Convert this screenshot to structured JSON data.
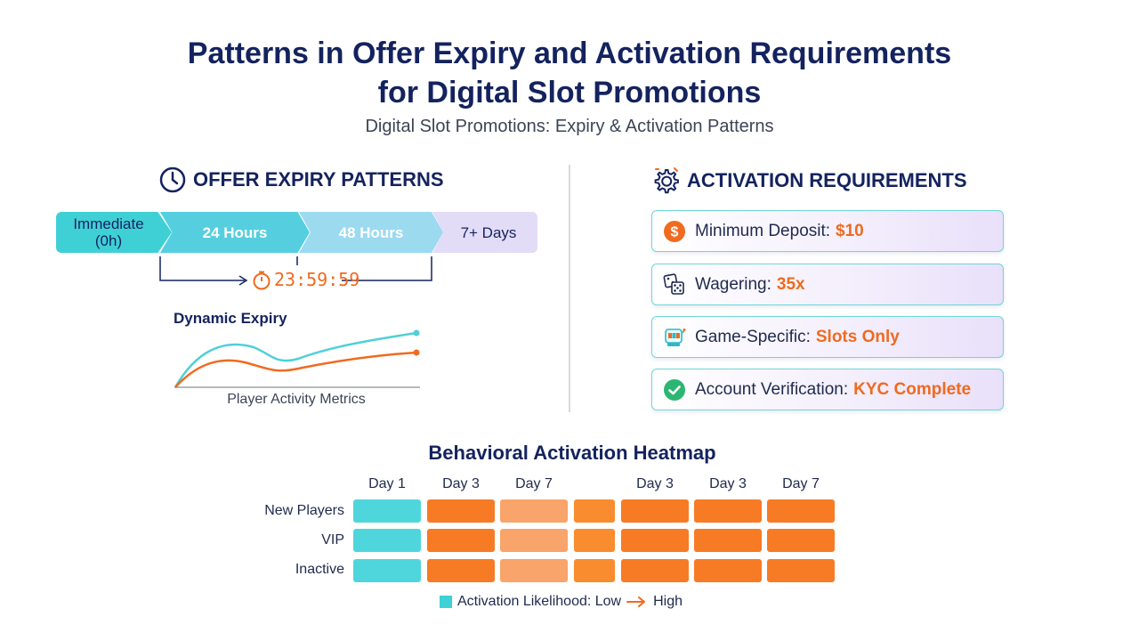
{
  "header": {
    "title_line1": "Patterns in Offer Expiry and Activation Requirements",
    "title_line2": "for Digital Slot Promotions",
    "subtitle": "Digital Slot Promotions: Expiry & Activation Patterns"
  },
  "expiry": {
    "heading": "OFFER EXPIRY PATTERNS",
    "heading_icon": "clock-icon",
    "segments": [
      {
        "label_line1": "Immediate",
        "label_line2": "(0h)"
      },
      {
        "label_line1": "24 Hours",
        "label_line2": ""
      },
      {
        "label_line1": "48 Hours",
        "label_line2": ""
      },
      {
        "label_line1": "7+ Days",
        "label_line2": ""
      }
    ],
    "timer_icon": "stopwatch-icon",
    "timer": "23:59:59",
    "dynamic": {
      "title": "Dynamic Expiry",
      "xlabel": "Player Activity Metrics",
      "colors": {
        "series1": "#4fd0d8",
        "series2": "#f06a1f"
      }
    }
  },
  "activation": {
    "heading": "ACTIVATION REQUIREMENTS",
    "heading_icon": "gear-icon",
    "items": [
      {
        "icon": "dollar-icon",
        "label": "Minimum Deposit:",
        "value": "$10"
      },
      {
        "icon": "dice-icon",
        "label": "Wagering:",
        "value": "35x"
      },
      {
        "icon": "slot-machine-icon",
        "label": "Game-Specific:",
        "value": "Slots Only"
      },
      {
        "icon": "check-icon",
        "label": "Account Verification:",
        "value": "KYC Complete"
      }
    ]
  },
  "heatmap": {
    "title": "Behavioral Activation Heatmap",
    "columns": [
      "Day 1",
      "Day 3",
      "Day 7",
      "",
      "Day 3",
      "Day 3",
      "Day 7"
    ],
    "rows": [
      "New Players",
      "VIP",
      "Inactive"
    ],
    "levels": [
      [
        0,
        1,
        0.6,
        0.85,
        1,
        1,
        1
      ],
      [
        0,
        1,
        0.6,
        0.85,
        1,
        1,
        1
      ],
      [
        0,
        1,
        0.6,
        0.85,
        1,
        1,
        1
      ]
    ],
    "legend": "Activation Likelihood: Low",
    "legend_high": "High",
    "colors": {
      "low": "#4fd6dc",
      "high": "#f77b25",
      "mid": "#f9a46a",
      "midhigh": "#f98c2e"
    }
  }
}
